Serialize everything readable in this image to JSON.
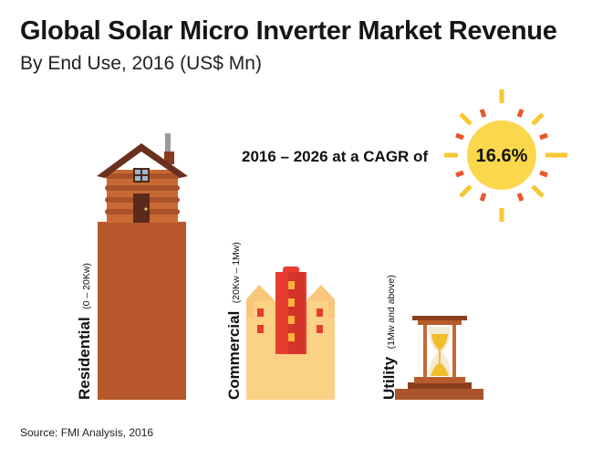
{
  "header": {
    "title": "Global Solar Micro Inverter Market Revenue",
    "subtitle": "By End Use, 2016 (US$ Mn)"
  },
  "cagr": {
    "text": "2016 – 2026 at a CAGR of",
    "value": "16.6%"
  },
  "footer": {
    "source": "Source: FMI Analysis, 2016"
  },
  "colors": {
    "residential": "#b8572b",
    "commercial": "#fbd186",
    "utility": "#a8552a",
    "sun_core": "#fbd84b",
    "sun_ray_yellow": "#f9c733",
    "sun_ray_red": "#e8562a"
  },
  "icons": [
    "house-icon",
    "building-icon",
    "hourglass-icon",
    "sun-icon"
  ],
  "chart_data": {
    "type": "bar",
    "title": "Global Solar Micro Inverter Market Revenue",
    "subtitle": "By End Use, 2016 (US$ Mn)",
    "categories": [
      "Residential",
      "Commercial",
      "Utility"
    ],
    "category_notes": [
      "(0 – 20Kw)",
      "(20Kw – 1Mw)",
      "(1Mw and above)"
    ],
    "values": [
      195,
      90,
      12
    ],
    "ylim": [
      0,
      200
    ],
    "grid": false,
    "legend": "none",
    "annotation": "2016 – 2026 at a CAGR of 16.6%"
  }
}
